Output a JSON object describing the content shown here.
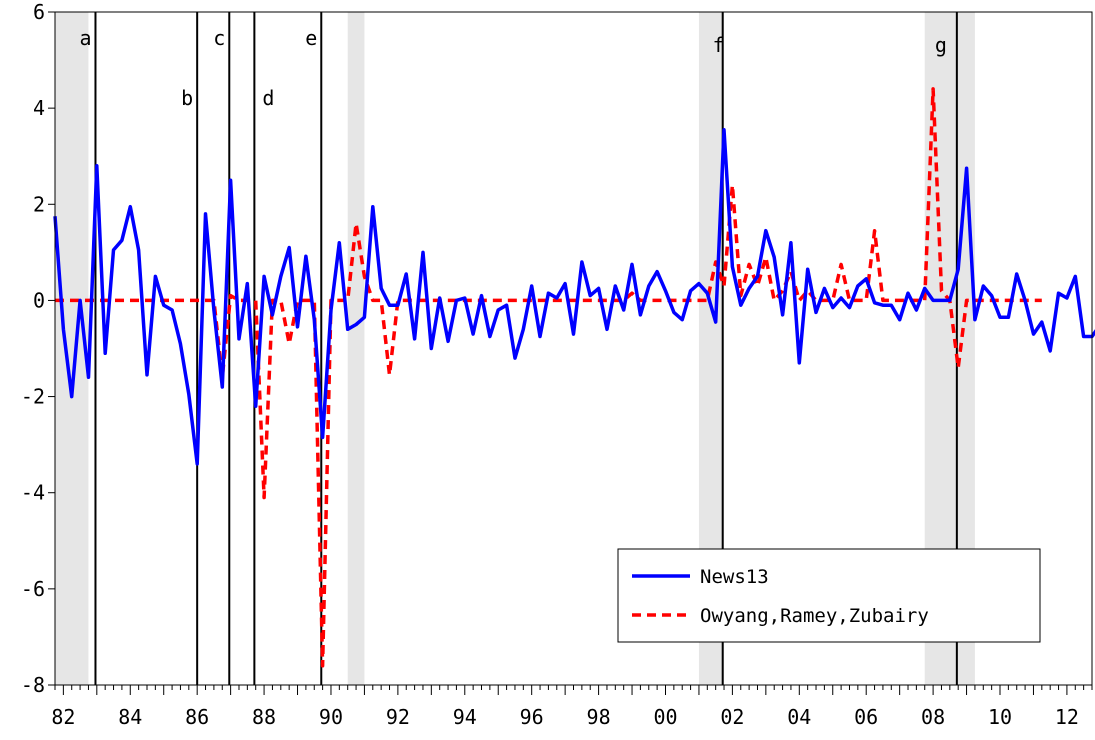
{
  "chart_data": {
    "type": "line",
    "title": "",
    "xlabel": "",
    "ylabel": "",
    "xlim": [
      1981.75,
      2012.75
    ],
    "ylim": [
      -8,
      6
    ],
    "y_ticks": [
      6,
      4,
      2,
      0,
      -2,
      -4,
      -6,
      -8
    ],
    "y_tick_labels": [
      "6",
      "4",
      "2",
      "0",
      "-2",
      "-4",
      "-6",
      "-8"
    ],
    "x_ticks": [
      1982,
      1984,
      1986,
      1988,
      1990,
      1992,
      1994,
      1996,
      1998,
      2000,
      2002,
      2004,
      2006,
      2008,
      2010,
      2012
    ],
    "x_tick_labels": [
      "82",
      "84",
      "86",
      "88",
      "90",
      "92",
      "94",
      "96",
      "98",
      "00",
      "02",
      "04",
      "06",
      "08",
      "10",
      "12"
    ],
    "recession_bands": [
      [
        1981.75,
        1982.75
      ],
      [
        1990.5,
        1991.0
      ],
      [
        2001.0,
        2001.75
      ],
      [
        2007.75,
        2009.25
      ]
    ],
    "events": [
      {
        "label": "a",
        "x": 1982.96
      },
      {
        "label": "b",
        "x": 1986.0
      },
      {
        "label": "c",
        "x": 1986.96
      },
      {
        "label": "d",
        "x": 1987.71
      },
      {
        "label": "e",
        "x": 1989.71
      },
      {
        "label": "f",
        "x": 2001.71
      },
      {
        "label": "g",
        "x": 2008.71
      }
    ],
    "legend_position": "bottom-right",
    "series": [
      {
        "name": "News13",
        "color": "#0000ff",
        "style": "solid",
        "x_start": 1981.75,
        "x_step": 0.25,
        "values": [
          1.75,
          -0.6,
          -2.0,
          0.0,
          -1.6,
          2.8,
          -1.1,
          1.05,
          1.25,
          1.95,
          1.05,
          -1.55,
          0.5,
          -0.1,
          -0.2,
          -0.9,
          -1.95,
          -3.4,
          1.8,
          -0.2,
          -1.8,
          2.5,
          -0.8,
          0.35,
          -2.2,
          0.5,
          -0.3,
          0.5,
          1.1,
          -0.55,
          0.92,
          -0.4,
          -2.85,
          -0.2,
          1.2,
          -0.6,
          -0.5,
          -0.35,
          1.95,
          0.25,
          -0.1,
          -0.1,
          0.55,
          -0.8,
          1.0,
          -1.0,
          0.05,
          -0.85,
          0.0,
          0.05,
          -0.7,
          0.1,
          -0.75,
          -0.2,
          -0.1,
          -1.2,
          -0.6,
          0.3,
          -0.75,
          0.15,
          0.05,
          0.35,
          -0.7,
          0.8,
          0.1,
          0.25,
          -0.6,
          0.3,
          -0.2,
          0.75,
          -0.3,
          0.3,
          0.6,
          0.2,
          -0.25,
          -0.4,
          0.2,
          0.35,
          0.15,
          -0.45,
          3.55,
          0.7,
          -0.1,
          0.25,
          0.5,
          1.45,
          0.9,
          -0.3,
          1.2,
          -1.3,
          0.65,
          -0.25,
          0.25,
          -0.15,
          0.05,
          -0.15,
          0.3,
          0.45,
          -0.05,
          -0.1,
          -0.1,
          -0.4,
          0.15,
          -0.2,
          0.25,
          0.0,
          0.0,
          0.0,
          0.65,
          2.75,
          -0.4,
          0.3,
          0.1,
          -0.35,
          -0.35,
          0.55,
          0.0,
          -0.7,
          -0.45,
          -1.05,
          0.15,
          0.05,
          0.5,
          -0.75,
          -0.75,
          -0.5
        ]
      },
      {
        "name": "Owyang,Ramey,Zubairy",
        "color": "#ff0000",
        "style": "dashed",
        "x_start": 1981.75,
        "x_step": 0.25,
        "values": [
          0,
          0,
          0,
          0,
          0,
          0,
          0,
          0,
          0,
          0,
          0,
          0,
          0,
          0,
          0,
          0,
          0,
          0,
          0,
          0,
          -1.6,
          0.1,
          0,
          0,
          0,
          -4.1,
          0,
          0,
          -0.9,
          0,
          0,
          0,
          -7.6,
          0,
          0,
          0,
          1.6,
          0.5,
          0,
          0,
          -1.55,
          0,
          0,
          0,
          0,
          0,
          0,
          0,
          0,
          0,
          0,
          0,
          0,
          0,
          0,
          0,
          0,
          0,
          0,
          0,
          0,
          0,
          0,
          0,
          0,
          0,
          0,
          0,
          0,
          0.15,
          0,
          0,
          0,
          0,
          0,
          0,
          0,
          0,
          0,
          0.8,
          0.3,
          2.4,
          0.1,
          0.75,
          0.3,
          0.9,
          0,
          0.2,
          0.6,
          0,
          0.2,
          0,
          0,
          0,
          0.75,
          0,
          0,
          0,
          1.45,
          0,
          0,
          0,
          0,
          0,
          0,
          4.4,
          0.2,
          0,
          -1.4,
          0,
          0,
          0,
          0,
          0,
          0,
          0,
          0,
          0,
          0
        ]
      }
    ]
  }
}
